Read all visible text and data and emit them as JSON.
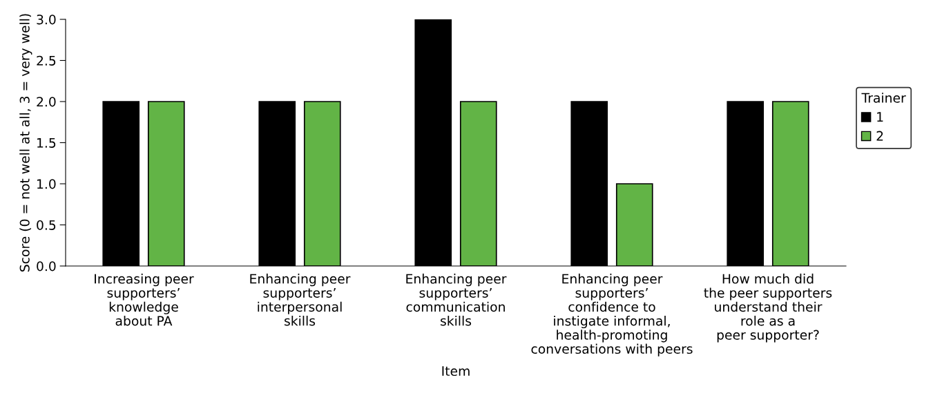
{
  "chart_data": {
    "type": "bar",
    "xlabel": "Item",
    "ylabel": "Score (0 = not well at all, 3 = very well)",
    "categories": [
      "Increasing peer\nsupporters’\nknowledge\nabout PA",
      "Enhancing peer\nsupporters’\ninterpersonal\nskills",
      "Enhancing peer\nsupporters’\ncommunication\nskills",
      "Enhancing peer\nsupporters’\nconfidence to\ninstigate informal,\nhealth-promoting\nconversations with peers",
      "How much did\nthe peer supporters\nunderstand their\nrole as a\npeer supporter?"
    ],
    "series": [
      {
        "name": "1",
        "color": "#000000",
        "values": [
          2,
          2,
          3,
          2,
          2
        ]
      },
      {
        "name": "2",
        "color": "#62b446",
        "values": [
          2,
          2,
          2,
          1,
          2
        ]
      }
    ],
    "legend_title": "Trainer",
    "legend": "right",
    "grid": false,
    "ylim": [
      0,
      3
    ],
    "yticks": [
      {
        "value": 0,
        "label": "0.0"
      },
      {
        "value": 0.5,
        "label": "0.5"
      },
      {
        "value": 1,
        "label": "1.0"
      },
      {
        "value": 1.5,
        "label": "1.5"
      },
      {
        "value": 2,
        "label": "2.0"
      },
      {
        "value": 2.5,
        "label": "2.5"
      },
      {
        "value": 3,
        "label": "3.0"
      }
    ]
  }
}
